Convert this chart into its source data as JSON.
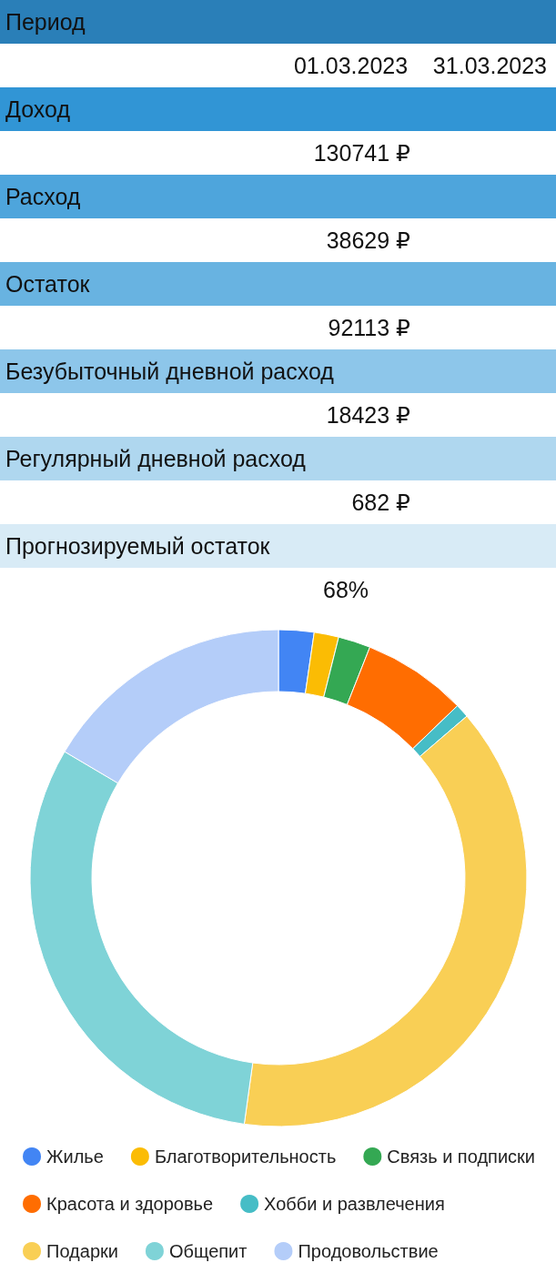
{
  "chart_data": [
    {
      "type": "other",
      "annotations": [
        "Период",
        "01.03.2023    31.03.2023",
        "Доход",
        "130741 ₽",
        "Расход",
        "38629 ₽",
        "Остаток",
        "92113 ₽",
        "Безубыточный дневной расход",
        "18423 ₽",
        "Регулярный дневной расход",
        "682 ₽",
        "Прогнозируемый остаток",
        "68%"
      ],
      "colors": [
        "#2a7fb8",
        "#3195d5",
        "#4ea5dc",
        "#68b3e1",
        "#8dc6ea",
        "#afd7ef",
        "#d8ebf6"
      ]
    },
    {
      "type": "donut",
      "categories": [
        "Жилье",
        "Благотворительность",
        "Связь и подписки",
        "Красота и здоровье",
        "Хобби и развлечения",
        "Подарки",
        "Общепит",
        "Продовольствие"
      ],
      "values": [
        2.3,
        1.6,
        2.1,
        6.8,
        0.9,
        38.5,
        31.3,
        16.5
      ],
      "colors": [
        "#4285f4",
        "#fbbc04",
        "#34a853",
        "#ff6d01",
        "#46bdc6",
        "#f9cf55",
        "#7fd3d7",
        "#b4cdf9"
      ],
      "legend": "bottom"
    }
  ]
}
